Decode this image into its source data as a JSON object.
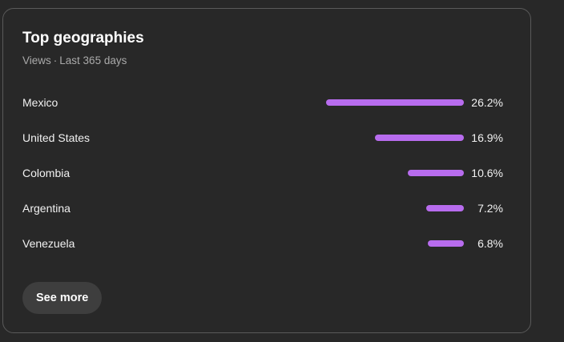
{
  "card": {
    "title": "Top geographies",
    "subtitle_metric": "Views",
    "subtitle_separator": "·",
    "subtitle_period": "Last 365 days"
  },
  "colors": {
    "bar": "#b86cee",
    "background": "#282828",
    "button": "#3e3e3e"
  },
  "geographies": [
    {
      "country": "Mexico",
      "percent_label": "26.2%",
      "value": 26.2
    },
    {
      "country": "United States",
      "percent_label": "16.9%",
      "value": 16.9
    },
    {
      "country": "Colombia",
      "percent_label": "10.6%",
      "value": 10.6
    },
    {
      "country": "Argentina",
      "percent_label": "7.2%",
      "value": 7.2
    },
    {
      "country": "Venezuela",
      "percent_label": "6.8%",
      "value": 6.8
    }
  ],
  "actions": {
    "see_more_label": "See more"
  }
}
